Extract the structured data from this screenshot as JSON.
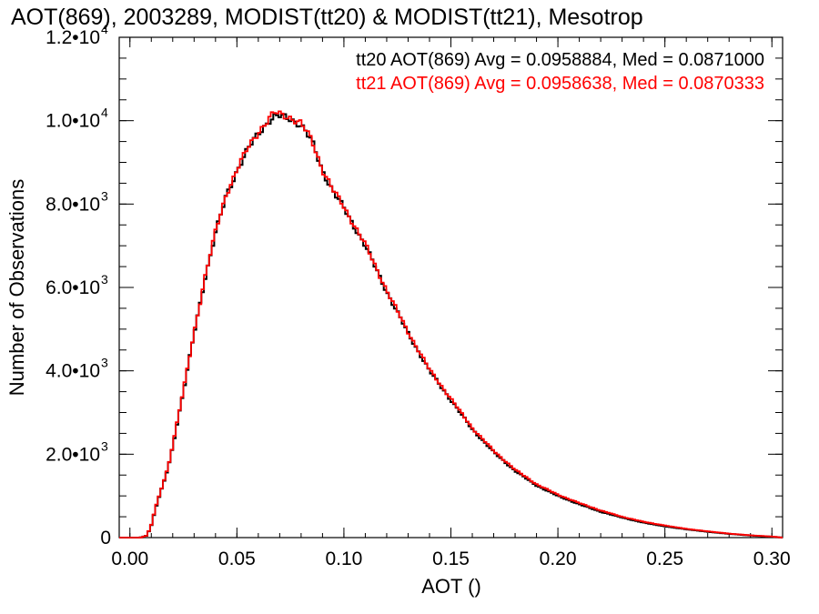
{
  "chart_data": {
    "type": "histogram",
    "title": "AOT(869), 2003289, MODIST(tt20) & MODIST(tt21), Mesotrop",
    "xlabel": "AOT ()",
    "ylabel": "Number of Observations",
    "xlim": [
      -0.005,
      0.305
    ],
    "ylim": [
      0,
      12000
    ],
    "x_ticks": [
      0.0,
      0.05,
      0.1,
      0.15,
      0.2,
      0.25,
      0.3
    ],
    "x_tick_labels": [
      "0.00",
      "0.05",
      "0.10",
      "0.15",
      "0.20",
      "0.25",
      "0.30"
    ],
    "y_ticks": [
      0,
      2000,
      4000,
      6000,
      8000,
      10000,
      12000
    ],
    "y_tick_labels": [
      {
        "mantissa": "0",
        "exp": ""
      },
      {
        "mantissa": "2.0•10",
        "exp": "3"
      },
      {
        "mantissa": "4.0•10",
        "exp": "3"
      },
      {
        "mantissa": "6.0•10",
        "exp": "3"
      },
      {
        "mantissa": "8.0•10",
        "exp": "3"
      },
      {
        "mantissa": "1.0•10",
        "exp": "4"
      },
      {
        "mantissa": "1.2•10",
        "exp": "4"
      }
    ],
    "grid": false,
    "legend_position": "top-right",
    "series": [
      {
        "name": "tt20",
        "label": "tt20 AOT(869) Avg = 0.0958884, Med = 0.0871000",
        "color": "#000000",
        "x": [
          -0.005,
          0.0,
          0.005,
          0.008,
          0.01,
          0.012,
          0.015,
          0.018,
          0.02,
          0.025,
          0.03,
          0.035,
          0.04,
          0.045,
          0.05,
          0.055,
          0.06,
          0.065,
          0.068,
          0.07,
          0.075,
          0.08,
          0.085,
          0.09,
          0.095,
          0.1,
          0.11,
          0.12,
          0.13,
          0.14,
          0.15,
          0.16,
          0.17,
          0.18,
          0.19,
          0.2,
          0.21,
          0.22,
          0.23,
          0.24,
          0.25,
          0.26,
          0.27,
          0.28,
          0.29,
          0.3,
          0.305
        ],
        "y": [
          0,
          0,
          0,
          50,
          300,
          700,
          1200,
          1700,
          2200,
          3500,
          4900,
          6200,
          7300,
          8200,
          8800,
          9300,
          9700,
          10000,
          10100,
          10100,
          10050,
          9900,
          9500,
          8800,
          8300,
          7900,
          7000,
          5900,
          4900,
          4000,
          3300,
          2600,
          2050,
          1600,
          1250,
          1000,
          800,
          620,
          480,
          360,
          270,
          200,
          140,
          90,
          50,
          20,
          0
        ]
      },
      {
        "name": "tt21",
        "label": "tt21 AOT(869) Avg = 0.0958638, Med = 0.0870333",
        "color": "#ff0000",
        "x": [
          -0.005,
          0.0,
          0.005,
          0.008,
          0.01,
          0.012,
          0.015,
          0.018,
          0.02,
          0.025,
          0.03,
          0.035,
          0.04,
          0.045,
          0.05,
          0.055,
          0.06,
          0.065,
          0.068,
          0.07,
          0.075,
          0.08,
          0.085,
          0.09,
          0.095,
          0.1,
          0.11,
          0.12,
          0.13,
          0.14,
          0.15,
          0.16,
          0.17,
          0.18,
          0.19,
          0.2,
          0.21,
          0.22,
          0.23,
          0.24,
          0.25,
          0.26,
          0.27,
          0.28,
          0.29,
          0.3,
          0.305
        ],
        "y": [
          0,
          0,
          0,
          50,
          310,
          720,
          1220,
          1720,
          2230,
          3530,
          4920,
          6230,
          7330,
          8230,
          8830,
          9330,
          9730,
          10050,
          10200,
          10150,
          10080,
          9930,
          9530,
          8830,
          8330,
          7930,
          7030,
          5930,
          4930,
          4030,
          3330,
          2630,
          2080,
          1630,
          1280,
          1030,
          830,
          650,
          500,
          380,
          290,
          210,
          150,
          95,
          55,
          25,
          0
        ]
      }
    ]
  }
}
